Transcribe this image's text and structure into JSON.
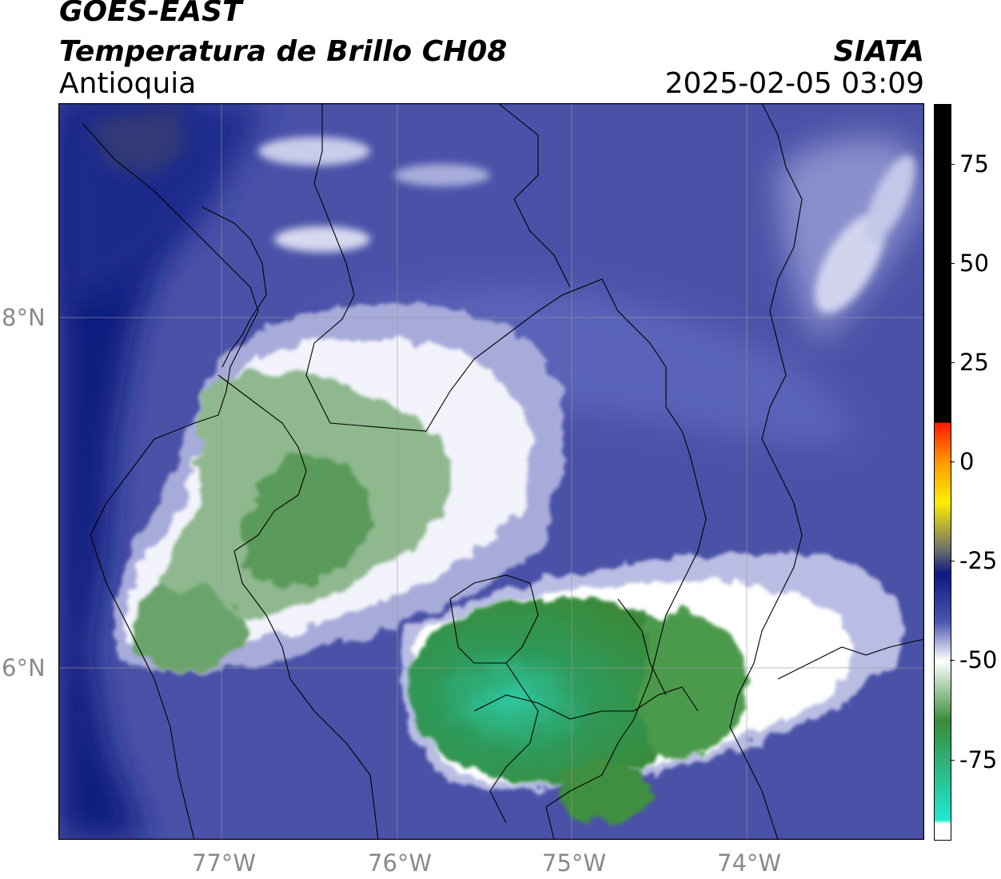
{
  "header": {
    "satellite": "GOES-EAST",
    "product": "Temperatura de Brillo CH08",
    "region": "Antioquia",
    "brand": "SIATA",
    "timestamp": "2025-02-05 03:09"
  },
  "map": {
    "lon_ticks": [
      "77°W",
      "76°W",
      "75°W",
      "74°W"
    ],
    "lat_ticks": [
      "8°N",
      "6°N"
    ],
    "extent": {
      "lon_min": -77.94,
      "lon_max": -73.0,
      "lat_min": 5.0,
      "lat_max": 9.2
    }
  },
  "colorbar": {
    "ticks": [
      "75",
      "50",
      "25",
      "0",
      "-25",
      "-50",
      "-75"
    ],
    "tick_values": [
      75,
      50,
      25,
      0,
      -25,
      -50,
      -75
    ],
    "range": [
      -95,
      90
    ],
    "colors": {
      "black": "#000000",
      "red": "#ff1a00",
      "orange": "#ff9a00",
      "yellow": "#ffee00",
      "grey": "#6e6e6e",
      "navy": "#0d1a80",
      "blue": "#4a55b0",
      "white": "#ffffff",
      "green": "#3a8a3a",
      "cyan": "#20e8d0"
    }
  }
}
